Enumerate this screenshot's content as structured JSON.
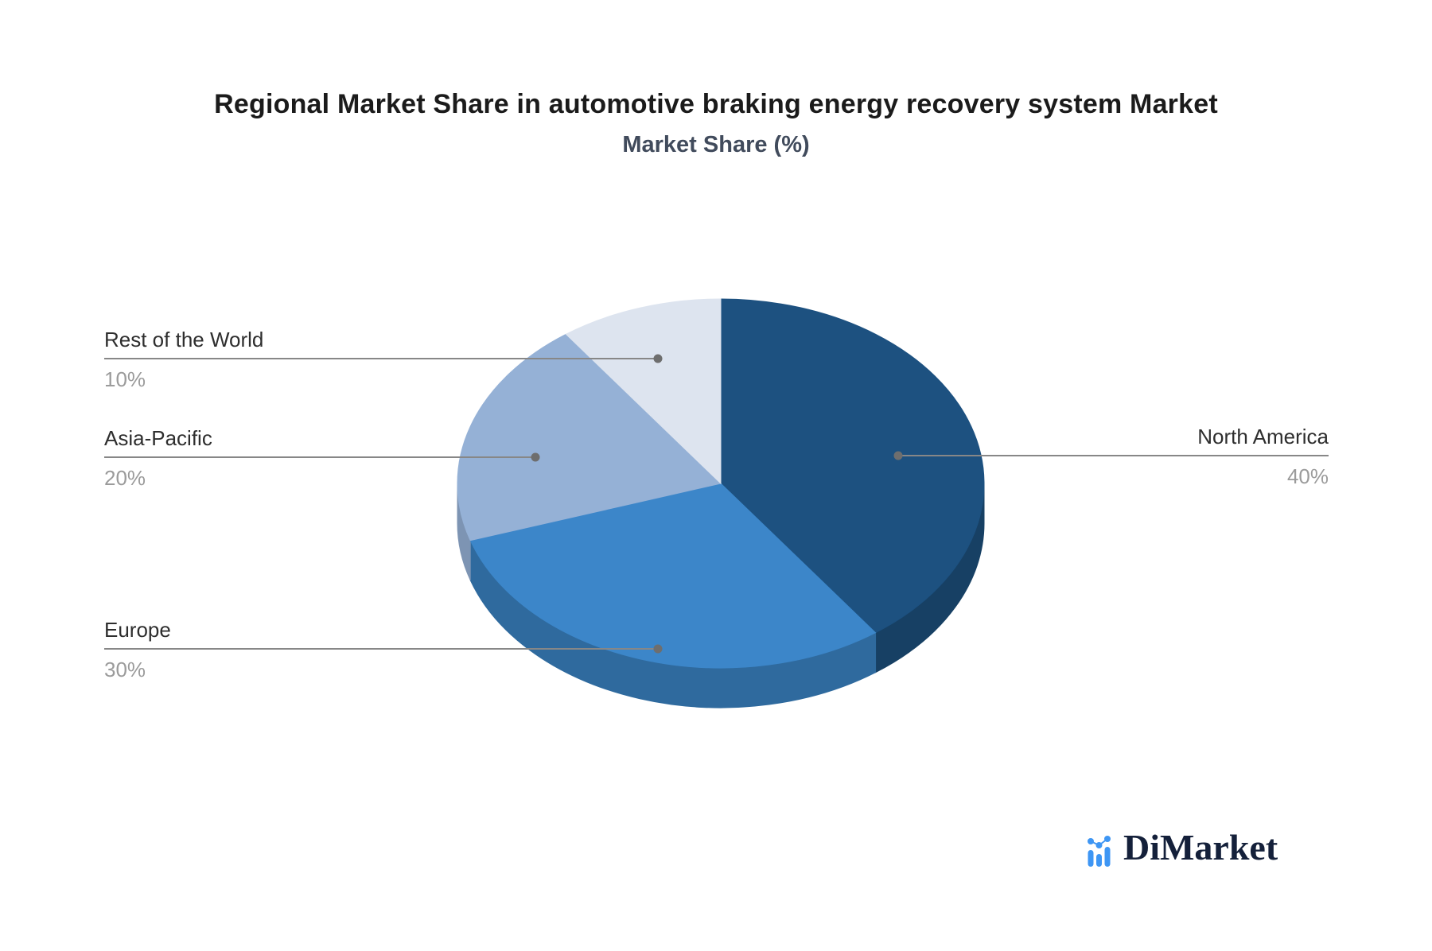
{
  "header": {
    "title": "Regional Market Share in automotive braking energy recovery system Market",
    "subtitle": "Market Share (%)"
  },
  "chart_data": {
    "type": "pie",
    "style": "3d",
    "title": "Regional Market Share in automotive braking energy recovery system Market",
    "subtitle": "Market Share (%)",
    "unit": "%",
    "start_angle": "12-oclock",
    "direction": "clockwise",
    "legend_position": "callout-leader-lines",
    "slices": [
      {
        "label": "North America",
        "value": 40,
        "percent_label": "40%",
        "color": "#1D5180",
        "side_color": "#174064"
      },
      {
        "label": "Europe",
        "value": 30,
        "percent_label": "30%",
        "color": "#3C86C9",
        "side_color": "#2F6A9E"
      },
      {
        "label": "Asia-Pacific",
        "value": 20,
        "percent_label": "20%",
        "color": "#95B1D6",
        "side_color": "#7D94B3"
      },
      {
        "label": "Rest of the World",
        "value": 10,
        "percent_label": "10%",
        "color": "#DDE4EF",
        "side_color": "#C5CEE0"
      }
    ]
  },
  "branding": {
    "logo_text": "DiMarket",
    "logo_icon": "bar-line-chart-icon",
    "text_color": "#14203A",
    "icon_color": "#3E96F4"
  },
  "style_colors": {
    "background": "#FFFFFF",
    "title": "#1B1B1B",
    "subtitle": "#414B5C",
    "label": "#2E2E2E",
    "percent": "#9B9B9B",
    "leader_line": "#878787",
    "dot": "#6E6E6E"
  }
}
